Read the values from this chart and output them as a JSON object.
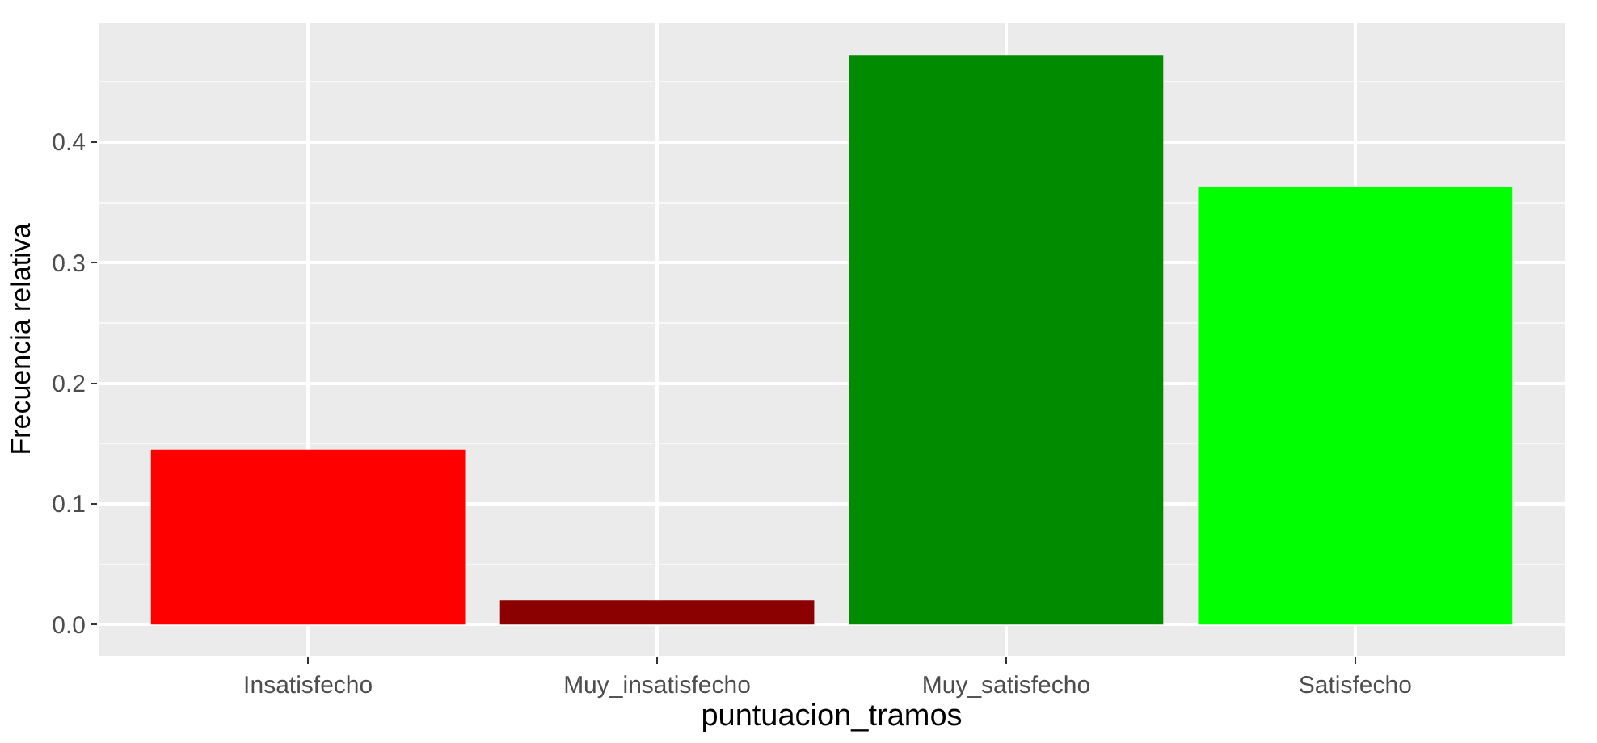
{
  "chart_data": {
    "type": "bar",
    "xlabel": "puntuacion_tramos",
    "ylabel": "Frecuencia relativa",
    "categories": [
      "Insatisfecho",
      "Muy_insatisfecho",
      "Muy_satisfecho",
      "Satisfecho"
    ],
    "values": [
      0.145,
      0.02,
      0.472,
      0.363
    ],
    "colors": [
      "#ff0000",
      "#8b0000",
      "#008b00",
      "#00ff00"
    ],
    "ylim": [
      -0.026,
      0.499
    ],
    "yticks": [
      {
        "value": 0,
        "label": "0.0"
      },
      0.1,
      0.2,
      0.3,
      0.4
    ],
    "grid": true
  }
}
